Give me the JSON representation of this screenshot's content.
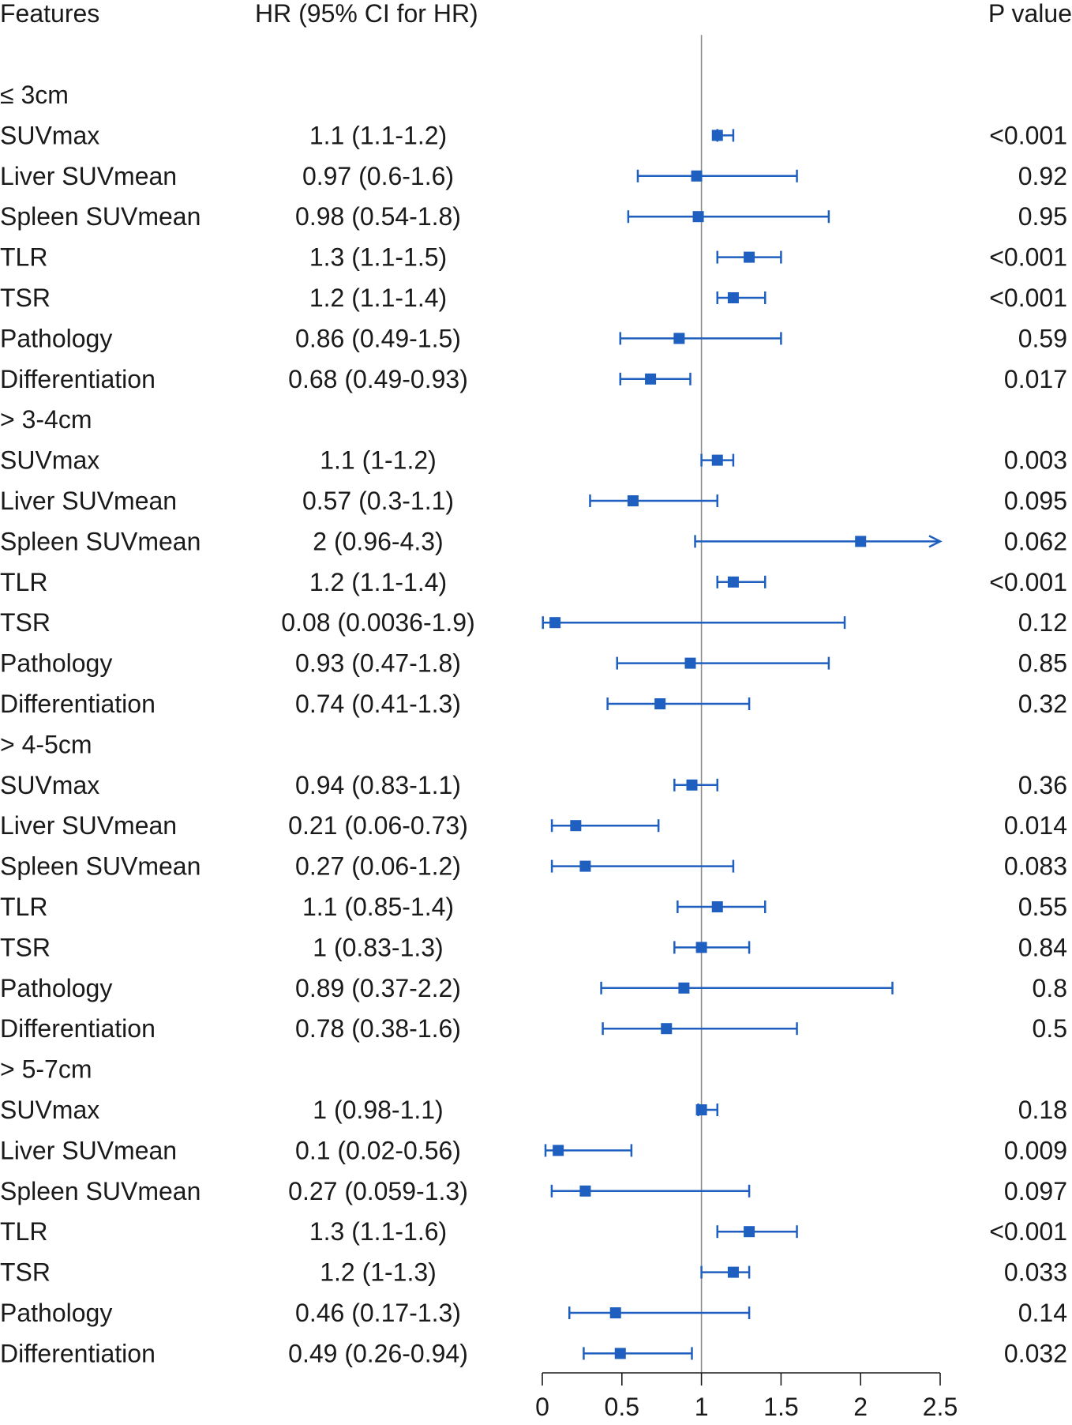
{
  "chart_data": {
    "type": "forest",
    "headers": {
      "features": "Features",
      "hr": "HR (95% CI for HR)",
      "p": "P value"
    },
    "reference_line": 1,
    "xlim": [
      0,
      2.5
    ],
    "x_ticks": [
      0,
      0.5,
      1,
      1.5,
      2,
      2.5
    ],
    "x_tick_labels": [
      "0",
      "0.5",
      "1",
      "1.5",
      "2",
      "2.5"
    ],
    "groups": [
      {
        "label": "≤ 3cm",
        "rows": [
          {
            "feature": "SUVmax",
            "hr_text": "1.1 (1.1-1.2)",
            "hr": 1.1,
            "lower": 1.1,
            "upper": 1.2,
            "p": "<0.001"
          },
          {
            "feature": "Liver SUVmean",
            "hr_text": "0.97 (0.6-1.6)",
            "hr": 0.97,
            "lower": 0.6,
            "upper": 1.6,
            "p": "0.92"
          },
          {
            "feature": "Spleen SUVmean",
            "hr_text": "0.98 (0.54-1.8)",
            "hr": 0.98,
            "lower": 0.54,
            "upper": 1.8,
            "p": "0.95"
          },
          {
            "feature": "TLR",
            "hr_text": "1.3 (1.1-1.5)",
            "hr": 1.3,
            "lower": 1.1,
            "upper": 1.5,
            "p": "<0.001"
          },
          {
            "feature": "TSR",
            "hr_text": "1.2 (1.1-1.4)",
            "hr": 1.2,
            "lower": 1.1,
            "upper": 1.4,
            "p": "<0.001"
          },
          {
            "feature": "Pathology",
            "hr_text": "0.86 (0.49-1.5)",
            "hr": 0.86,
            "lower": 0.49,
            "upper": 1.5,
            "p": "0.59"
          },
          {
            "feature": "Differentiation",
            "hr_text": "0.68 (0.49-0.93)",
            "hr": 0.68,
            "lower": 0.49,
            "upper": 0.93,
            "p": "0.017"
          }
        ]
      },
      {
        "label": "> 3-4cm",
        "rows": [
          {
            "feature": "SUVmax",
            "hr_text": "1.1 (1-1.2)",
            "hr": 1.1,
            "lower": 1.0,
            "upper": 1.2,
            "p": "0.003"
          },
          {
            "feature": "Liver SUVmean",
            "hr_text": "0.57 (0.3-1.1)",
            "hr": 0.57,
            "lower": 0.3,
            "upper": 1.1,
            "p": "0.095"
          },
          {
            "feature": "Spleen SUVmean",
            "hr_text": "2 (0.96-4.3)",
            "hr": 2.0,
            "lower": 0.96,
            "upper": 4.3,
            "p": "0.062"
          },
          {
            "feature": "TLR",
            "hr_text": "1.2 (1.1-1.4)",
            "hr": 1.2,
            "lower": 1.1,
            "upper": 1.4,
            "p": "<0.001"
          },
          {
            "feature": "TSR",
            "hr_text": "0.08 (0.0036-1.9)",
            "hr": 0.08,
            "lower": 0.0036,
            "upper": 1.9,
            "p": "0.12"
          },
          {
            "feature": "Pathology",
            "hr_text": "0.93 (0.47-1.8)",
            "hr": 0.93,
            "lower": 0.47,
            "upper": 1.8,
            "p": "0.85"
          },
          {
            "feature": "Differentiation",
            "hr_text": "0.74 (0.41-1.3)",
            "hr": 0.74,
            "lower": 0.41,
            "upper": 1.3,
            "p": "0.32"
          }
        ]
      },
      {
        "label": "> 4-5cm",
        "rows": [
          {
            "feature": "SUVmax",
            "hr_text": "0.94 (0.83-1.1)",
            "hr": 0.94,
            "lower": 0.83,
            "upper": 1.1,
            "p": "0.36"
          },
          {
            "feature": "Liver SUVmean",
            "hr_text": "0.21 (0.06-0.73)",
            "hr": 0.21,
            "lower": 0.06,
            "upper": 0.73,
            "p": "0.014"
          },
          {
            "feature": "Spleen SUVmean",
            "hr_text": "0.27 (0.06-1.2)",
            "hr": 0.27,
            "lower": 0.06,
            "upper": 1.2,
            "p": "0.083"
          },
          {
            "feature": "TLR",
            "hr_text": "1.1 (0.85-1.4)",
            "hr": 1.1,
            "lower": 0.85,
            "upper": 1.4,
            "p": "0.55"
          },
          {
            "feature": "TSR",
            "hr_text": "1 (0.83-1.3)",
            "hr": 1.0,
            "lower": 0.83,
            "upper": 1.3,
            "p": "0.84"
          },
          {
            "feature": "Pathology",
            "hr_text": "0.89 (0.37-2.2)",
            "hr": 0.89,
            "lower": 0.37,
            "upper": 2.2,
            "p": "0.8"
          },
          {
            "feature": "Differentiation",
            "hr_text": "0.78 (0.38-1.6)",
            "hr": 0.78,
            "lower": 0.38,
            "upper": 1.6,
            "p": "0.5"
          }
        ]
      },
      {
        "label": "> 5-7cm",
        "rows": [
          {
            "feature": "SUVmax",
            "hr_text": "1 (0.98-1.1)",
            "hr": 1.0,
            "lower": 0.98,
            "upper": 1.1,
            "p": "0.18"
          },
          {
            "feature": "Liver SUVmean",
            "hr_text": "0.1 (0.02-0.56)",
            "hr": 0.1,
            "lower": 0.02,
            "upper": 0.56,
            "p": "0.009"
          },
          {
            "feature": "Spleen SUVmean",
            "hr_text": "0.27 (0.059-1.3)",
            "hr": 0.27,
            "lower": 0.059,
            "upper": 1.3,
            "p": "0.097"
          },
          {
            "feature": "TLR",
            "hr_text": "1.3 (1.1-1.6)",
            "hr": 1.3,
            "lower": 1.1,
            "upper": 1.6,
            "p": "<0.001"
          },
          {
            "feature": "TSR",
            "hr_text": "1.2 (1-1.3)",
            "hr": 1.2,
            "lower": 1.0,
            "upper": 1.3,
            "p": "0.033"
          },
          {
            "feature": "Pathology",
            "hr_text": "0.46 (0.17-1.3)",
            "hr": 0.46,
            "lower": 0.17,
            "upper": 1.3,
            "p": "0.14"
          },
          {
            "feature": "Differentiation",
            "hr_text": "0.49 (0.26-0.94)",
            "hr": 0.49,
            "lower": 0.26,
            "upper": 0.94,
            "p": "0.032"
          }
        ]
      }
    ],
    "colors": {
      "marker": "#1f5fbf",
      "ref_line": "#8c8c8c",
      "axis": "#1a1a1a"
    }
  }
}
